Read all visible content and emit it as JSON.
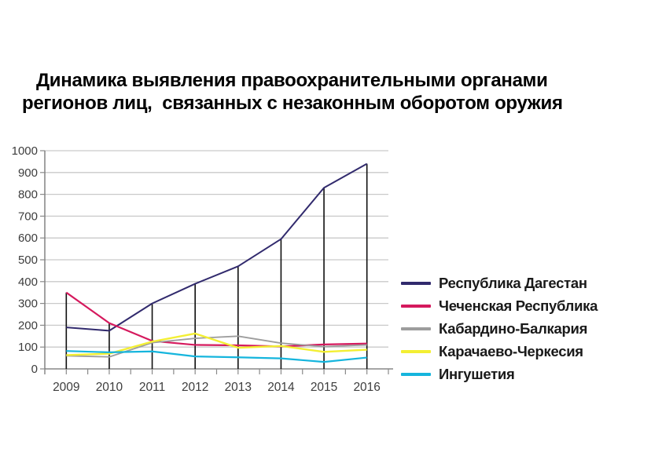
{
  "page": {
    "background": "#ffffff",
    "title_lines": [
      "Динамика выявления правоохранительными органами",
      "регионов лиц,  связанных с незаконным оборотом оружия"
    ]
  },
  "chart_data": {
    "type": "line",
    "title": "Динамика выявления правоохранительными органами регионов лиц, связанных с незаконным оборотом оружия",
    "categories": [
      "2009",
      "2010",
      "2011",
      "2012",
      "2013",
      "2014",
      "2015",
      "2016"
    ],
    "series": [
      {
        "name": "Республика Дагестан",
        "color": "#312a6d",
        "values": [
          190,
          175,
          300,
          390,
          470,
          595,
          830,
          940
        ]
      },
      {
        "name": "Чеченская Республика",
        "color": "#d5195d",
        "values": [
          350,
          210,
          128,
          110,
          108,
          103,
          112,
          116
        ]
      },
      {
        "name": "Кабардино-Балкария",
        "color": "#9d9d9d",
        "values": [
          60,
          55,
          120,
          140,
          150,
          118,
          102,
          110
        ]
      },
      {
        "name": "Карачаево-Черкесия",
        "color": "#f3ef33",
        "values": [
          63,
          70,
          125,
          162,
          97,
          105,
          78,
          88
        ]
      },
      {
        "name": "Ингушетия",
        "color": "#15b5dd",
        "values": [
          82,
          76,
          80,
          57,
          53,
          48,
          32,
          52
        ]
      }
    ],
    "ylim": [
      0,
      1000
    ],
    "ytick_step": 100,
    "ytick_labels": [
      "0",
      "100",
      "200",
      "300",
      "400",
      "500",
      "600",
      "700",
      "800",
      "900",
      "1000"
    ],
    "grid": "horizontal",
    "legend_position": "right",
    "drop_lines": true
  },
  "colors": {
    "grid": "#c9c9c9",
    "axis": "#6f6f6f",
    "tick": "#8a8a8a",
    "drop_line": "#101010",
    "axis_label": "#3d3d3d",
    "title": "#000000",
    "legend_text": "#1a1a1a"
  }
}
